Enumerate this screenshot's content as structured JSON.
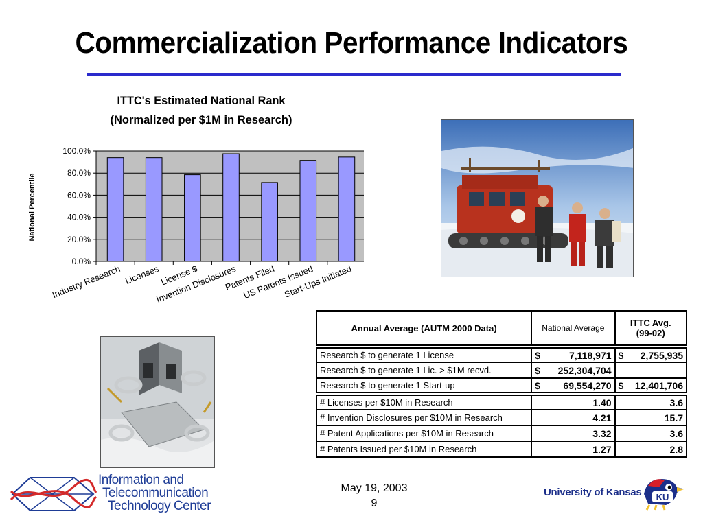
{
  "slide": {
    "title": "Commercialization Performance Indicators",
    "date": "May 19, 2003",
    "page_number": "9"
  },
  "chart_data": {
    "type": "bar",
    "title_line1": "ITTC's Estimated National Rank",
    "title_line2": "(Normalized per $1M in Research)",
    "xlabel": "",
    "ylabel": "National Percentile",
    "categories": [
      "Industry Research",
      "Licenses",
      "License $",
      "Invention Disclosures",
      "Patents Filed",
      "US Patents Issued",
      "Start-Ups Initiated"
    ],
    "values": [
      94,
      94,
      78.5,
      97.5,
      71.5,
      91.5,
      94.5
    ],
    "ylim": [
      0,
      100
    ],
    "yticks": [
      "0.0%",
      "20.0%",
      "40.0%",
      "60.0%",
      "80.0%",
      "100.0%"
    ],
    "bar_color": "#9999ff",
    "plot_background": "#c0c0c0",
    "grid": true,
    "legend": "none"
  },
  "table": {
    "header": {
      "col1": "Annual Average  (AUTM 2000 Data)",
      "col2": "National Average",
      "col3_line1": "ITTC Avg.",
      "col3_line2": "(99-02)"
    },
    "dollar_rows": [
      {
        "label": "Research $ to generate 1 License",
        "national": "7,118,971",
        "ittc": "2,755,935"
      },
      {
        "label": "Research $ to generate 1 Lic. > $1M recvd.",
        "national": "252,304,704",
        "ittc": ""
      },
      {
        "label": "Research $ to generate 1 Start-up",
        "national": "69,554,270",
        "ittc": "12,401,706"
      }
    ],
    "ratio_rows": [
      {
        "label": "# Licenses per $10M in Research",
        "national": "1.40",
        "ittc": "3.6"
      },
      {
        "label": "# Invention Disclosures per $10M in Research",
        "national": "4.21",
        "ittc": "15.7"
      },
      {
        "label": "# Patent Applications per $10M in Research",
        "national": "3.32",
        "ittc": "3.6"
      },
      {
        "label": "# Patents Issued per $10M in Research",
        "national": "1.27",
        "ittc": "2.8"
      }
    ],
    "currency_symbol": "$"
  },
  "logos": {
    "ittc_line1": "Information and",
    "ittc_line2": "Telecommunication",
    "ittc_line3": "Technology Center",
    "university": "University of Kansas",
    "ku_badge": "KU"
  },
  "colors": {
    "rule": "#2a2acc",
    "ittc_blue": "#1e3c96",
    "ku_blue": "#1c2f8a",
    "ku_red": "#d81e28"
  }
}
